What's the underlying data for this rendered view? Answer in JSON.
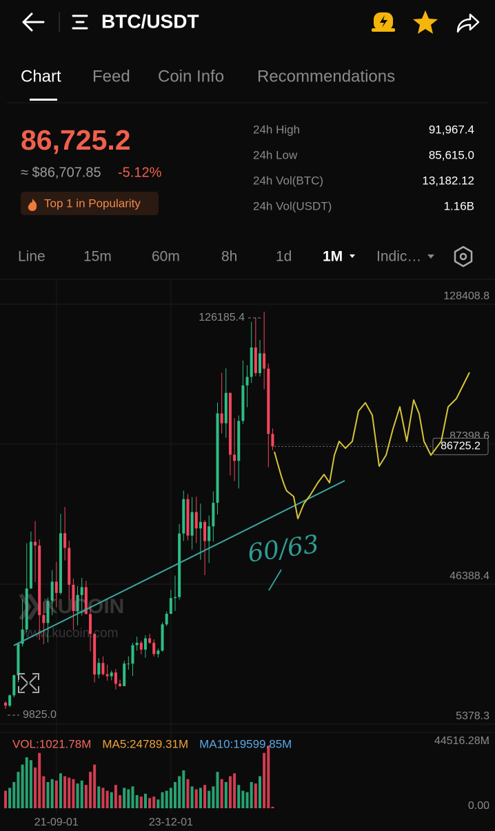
{
  "header": {
    "title": "BTC/USDT"
  },
  "tabs": [
    "Chart",
    "Feed",
    "Coin Info",
    "Recommendations"
  ],
  "price": {
    "last": "86,725.2",
    "approx": "≈ $86,707.85",
    "change": "-5.12%",
    "badge": "Top 1 in Popularity"
  },
  "stats": [
    {
      "label": "24h High",
      "value": "91,967.4"
    },
    {
      "label": "24h Low",
      "value": "85,615.0"
    },
    {
      "label": "24h Vol(BTC)",
      "value": "13,182.12"
    },
    {
      "label": "24h Vol(USDT)",
      "value": "1.16B"
    }
  ],
  "timeframes": [
    "Line",
    "15m",
    "60m",
    "8h",
    "1d",
    "1M",
    "Indic…"
  ],
  "chart_data": {
    "type": "candlestick",
    "categories": [
      null,
      null,
      null,
      null,
      null,
      null,
      null,
      null,
      null,
      null,
      null,
      null,
      "21-09-01",
      null,
      null,
      null,
      null,
      null,
      null,
      null,
      null,
      null,
      null,
      null,
      null,
      null,
      null,
      null,
      null,
      null,
      null,
      null,
      null,
      null,
      null,
      null,
      null,
      null,
      null,
      "23-12-01",
      null,
      null,
      null,
      null,
      null,
      null,
      null,
      null,
      null,
      null,
      null,
      null,
      null,
      null,
      null,
      null,
      null,
      null,
      null,
      null,
      null,
      null,
      null,
      null
    ],
    "open": [
      11650,
      10780,
      13800,
      19700,
      28900,
      33100,
      45100,
      58800,
      57700,
      37300,
      35000,
      41500,
      47100,
      43800,
      61300,
      57000,
      46200,
      38500,
      43200,
      45500,
      37600,
      31800,
      19900,
      23300,
      20000,
      19400,
      20500,
      17200,
      16500,
      23100,
      23100,
      28500,
      29200,
      27200,
      30500,
      29200,
      25900,
      26900,
      34600,
      37700,
      42300,
      42600,
      61200,
      71300,
      60600,
      67500,
      62700,
      64600,
      59000,
      63300,
      70200,
      96400,
      93500,
      102400,
      84300,
      82500,
      94200,
      104600,
      107100,
      115700,
      108200,
      114000,
      109500,
      90400
    ],
    "high": [
      12070,
      14100,
      19900,
      29300,
      41950,
      58350,
      61800,
      64850,
      59500,
      41300,
      42400,
      50500,
      52900,
      67000,
      69000,
      59100,
      48000,
      45800,
      48200,
      47400,
      40000,
      31900,
      24700,
      25200,
      22800,
      21100,
      21500,
      18400,
      23900,
      25250,
      29200,
      31000,
      29800,
      31400,
      31800,
      30200,
      27500,
      35200,
      38400,
      44700,
      48900,
      64000,
      73800,
      72800,
      71900,
      72000,
      70000,
      65100,
      66500,
      73600,
      99600,
      108300,
      109600,
      102500,
      95000,
      95800,
      111900,
      110500,
      123200,
      124500,
      117900,
      126185.4,
      111000,
      91967.4
    ],
    "low": [
      9825,
      10370,
      13200,
      17600,
      28100,
      32300,
      45000,
      47000,
      30000,
      28800,
      29300,
      37300,
      39600,
      43300,
      53300,
      42000,
      32900,
      34300,
      37200,
      37600,
      26700,
      17600,
      18800,
      19600,
      18100,
      18200,
      15500,
      16250,
      16500,
      21300,
      19500,
      26900,
      25800,
      24800,
      28900,
      25200,
      24900,
      26600,
      34100,
      37600,
      38500,
      41900,
      59000,
      59200,
      56500,
      58400,
      53500,
      49000,
      52600,
      58900,
      66800,
      90500,
      89300,
      78200,
      76600,
      74400,
      93300,
      98200,
      105300,
      107300,
      107200,
      103500,
      80600,
      85615
    ],
    "close": [
      10780,
      13800,
      19700,
      28900,
      33100,
      45100,
      58800,
      57700,
      37300,
      35000,
      41500,
      47100,
      43800,
      61300,
      57000,
      46200,
      38500,
      43200,
      45500,
      37600,
      31800,
      19900,
      23300,
      20000,
      19400,
      20500,
      17200,
      16500,
      23100,
      23100,
      28500,
      29200,
      27200,
      30500,
      29200,
      25900,
      26900,
      34600,
      37700,
      42300,
      42600,
      61200,
      71300,
      60600,
      67500,
      62700,
      64600,
      59000,
      63300,
      70200,
      96400,
      93500,
      102400,
      84300,
      82500,
      94200,
      104600,
      107100,
      115700,
      108200,
      114000,
      109500,
      90400,
      86725.2
    ],
    "up_color": "#2ebd85",
    "down_color": "#f6465d",
    "ylim": [
      5378.3,
      128408.8
    ],
    "yticks": [
      128408.8,
      87398.6,
      46388.4,
      5378.3
    ],
    "grid": true,
    "high_label": 126185.4,
    "low_label": {
      "value": 9825,
      "label": "9825.0"
    },
    "last_price": 86725.2,
    "annotation": "60/63",
    "watermark": [
      "KUCOIN",
      "www.kucoin.com"
    ],
    "volume": {
      "values": [
        12000,
        14000,
        18000,
        25000,
        30000,
        35000,
        33000,
        28000,
        38000,
        22000,
        18000,
        20000,
        19000,
        24000,
        22000,
        21000,
        20000,
        17000,
        19000,
        16000,
        25000,
        30000,
        15000,
        14000,
        12000,
        11000,
        16000,
        9000,
        14000,
        13000,
        15000,
        9000,
        8000,
        10000,
        7000,
        8000,
        6000,
        11000,
        12000,
        14000,
        18000,
        22000,
        26000,
        20000,
        15000,
        13000,
        14000,
        16000,
        12000,
        15000,
        25000,
        20000,
        18000,
        22000,
        24000,
        16000,
        12000,
        11000,
        18000,
        17000,
        22000,
        38000,
        43000,
        1021.78
      ],
      "ylim": [
        0,
        44516.28
      ],
      "yticks": [
        {
          "value": 44516.28,
          "label": "44516.28M"
        },
        {
          "value": 0,
          "label": "0.00"
        }
      ],
      "legend": [
        {
          "text": "VOL:1021.78M",
          "color": "#f6665d"
        },
        {
          "text": "MA5:24789.31M",
          "color": "#f0a33a"
        },
        {
          "text": "MA10:19599.85M",
          "color": "#5aa8e8"
        }
      ]
    }
  }
}
